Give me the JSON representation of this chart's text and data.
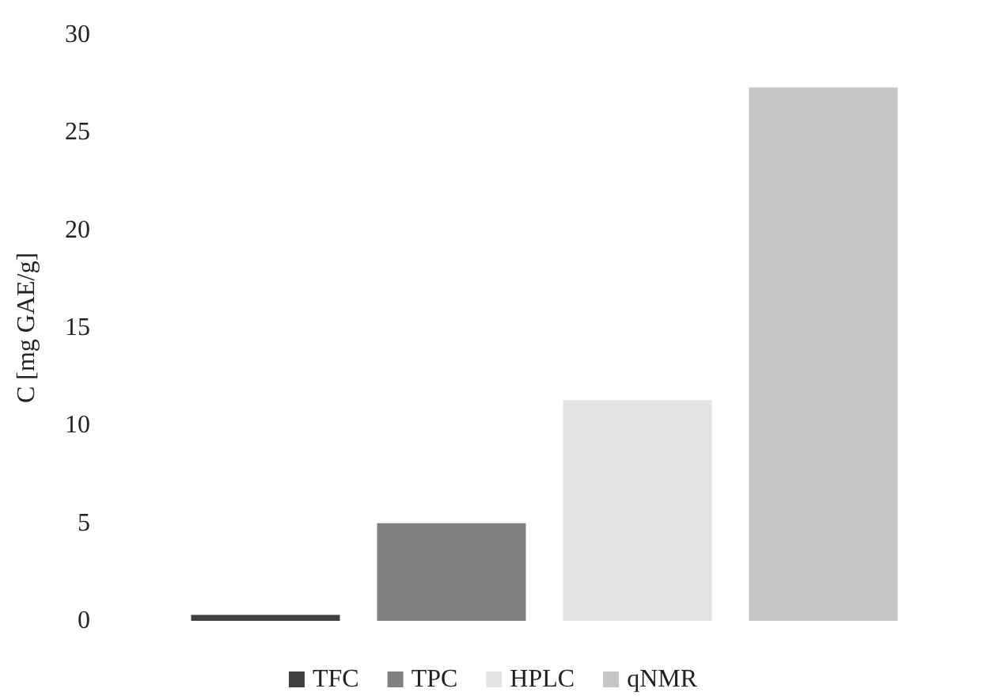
{
  "chart_data": {
    "type": "bar",
    "ylabel": "C [mg GAE/g]",
    "categories": [
      null
    ],
    "series": [
      {
        "name": "TFC",
        "color": "#404040",
        "values": [
          0.3
        ]
      },
      {
        "name": "TPC",
        "color": "#808080",
        "values": [
          5.0
        ]
      },
      {
        "name": "HPLC",
        "color": "#e3e3e3",
        "values": [
          11.3
        ]
      },
      {
        "name": "qNMR",
        "color": "#c6c6c6",
        "values": [
          27.3
        ]
      }
    ],
    "ylim": [
      0,
      30
    ],
    "yticks": [
      0,
      5,
      10,
      15,
      20,
      25,
      30
    ],
    "grid": false,
    "legend": "bottom"
  }
}
